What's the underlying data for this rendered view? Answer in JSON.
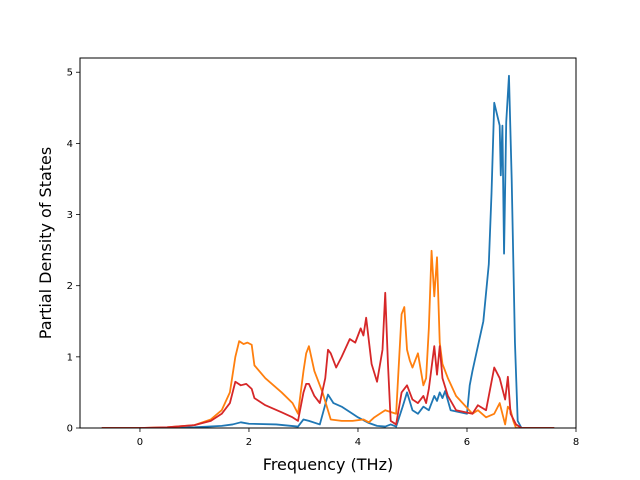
{
  "chart_data": {
    "type": "line",
    "title": "",
    "xlabel": "Frequency (THz)",
    "ylabel": "Partial Density of States",
    "xlim": [
      -1.1,
      8.0
    ],
    "ylim": [
      0,
      5.2
    ],
    "xticks": [
      0,
      2,
      4,
      6,
      8
    ],
    "yticks": [
      0,
      1,
      2,
      3,
      4,
      5
    ],
    "grid": false,
    "legend": "none",
    "series": [
      {
        "color": "#1f77b4",
        "x": [
          -0.7,
          0.5,
          1.0,
          1.5,
          1.7,
          1.85,
          2.0,
          2.5,
          2.9,
          3.0,
          3.1,
          3.3,
          3.45,
          3.55,
          3.7,
          3.9,
          4.0,
          4.2,
          4.35,
          4.5,
          4.6,
          4.7,
          4.82,
          4.9,
          5.0,
          5.1,
          5.2,
          5.3,
          5.4,
          5.45,
          5.5,
          5.55,
          5.6,
          5.7,
          6.0,
          6.05,
          6.1,
          6.3,
          6.4,
          6.45,
          6.5,
          6.6,
          6.62,
          6.65,
          6.68,
          6.72,
          6.77,
          6.82,
          6.88,
          6.93,
          7.0,
          7.6
        ],
        "y": [
          0,
          0,
          0.01,
          0.03,
          0.05,
          0.08,
          0.06,
          0.05,
          0.02,
          0.12,
          0.1,
          0.05,
          0.47,
          0.35,
          0.3,
          0.2,
          0.15,
          0.07,
          0.03,
          0.02,
          0.05,
          0.02,
          0.3,
          0.5,
          0.25,
          0.2,
          0.3,
          0.25,
          0.45,
          0.38,
          0.5,
          0.42,
          0.52,
          0.25,
          0.2,
          0.6,
          0.8,
          1.5,
          2.3,
          3.3,
          4.57,
          4.25,
          3.55,
          4.25,
          2.45,
          4.3,
          4.95,
          3.5,
          1.2,
          0.1,
          0,
          0
        ]
      },
      {
        "color": "#ff7f0e",
        "x": [
          -0.7,
          0.0,
          0.5,
          1.0,
          1.3,
          1.5,
          1.65,
          1.75,
          1.82,
          1.9,
          1.97,
          2.05,
          2.1,
          2.3,
          2.6,
          2.8,
          2.9,
          3.0,
          3.05,
          3.1,
          3.2,
          3.35,
          3.5,
          3.7,
          3.9,
          4.1,
          4.2,
          4.3,
          4.5,
          4.62,
          4.7,
          4.8,
          4.85,
          4.9,
          4.95,
          5.0,
          5.1,
          5.2,
          5.25,
          5.3,
          5.35,
          5.4,
          5.45,
          5.5,
          5.55,
          5.65,
          5.8,
          6.1,
          6.2,
          6.35,
          6.5,
          6.6,
          6.7,
          6.75,
          6.8,
          6.85,
          6.9,
          7.0,
          7.6
        ],
        "y": [
          0,
          0,
          0.01,
          0.04,
          0.12,
          0.25,
          0.5,
          1.0,
          1.22,
          1.18,
          1.2,
          1.17,
          0.88,
          0.7,
          0.5,
          0.35,
          0.2,
          0.8,
          1.05,
          1.15,
          0.8,
          0.5,
          0.12,
          0.1,
          0.1,
          0.12,
          0.08,
          0.15,
          0.25,
          0.22,
          0.2,
          1.6,
          1.7,
          1.1,
          0.95,
          0.85,
          1.05,
          0.6,
          0.7,
          1.4,
          2.49,
          1.85,
          2.4,
          1.2,
          0.9,
          0.7,
          0.45,
          0.2,
          0.25,
          0.15,
          0.2,
          0.35,
          0.05,
          0.3,
          0.25,
          0.1,
          0,
          0,
          0
        ]
      },
      {
        "color": "#d62728",
        "x": [
          -0.7,
          0.0,
          0.5,
          1.0,
          1.3,
          1.5,
          1.65,
          1.75,
          1.85,
          1.95,
          2.05,
          2.1,
          2.3,
          2.6,
          2.8,
          2.9,
          3.0,
          3.05,
          3.1,
          3.2,
          3.3,
          3.4,
          3.45,
          3.5,
          3.6,
          3.7,
          3.85,
          3.95,
          4.05,
          4.1,
          4.15,
          4.25,
          4.35,
          4.45,
          4.5,
          4.55,
          4.6,
          4.7,
          4.8,
          4.9,
          5.0,
          5.1,
          5.2,
          5.25,
          5.3,
          5.4,
          5.45,
          5.5,
          5.55,
          5.65,
          5.8,
          6.1,
          6.2,
          6.35,
          6.5,
          6.6,
          6.7,
          6.75,
          6.8,
          6.9,
          7.0,
          7.6
        ],
        "y": [
          0,
          0,
          0.01,
          0.04,
          0.1,
          0.2,
          0.35,
          0.65,
          0.6,
          0.62,
          0.55,
          0.42,
          0.32,
          0.22,
          0.15,
          0.1,
          0.5,
          0.62,
          0.62,
          0.45,
          0.35,
          0.7,
          1.1,
          1.05,
          0.85,
          1.0,
          1.25,
          1.2,
          1.4,
          1.3,
          1.55,
          0.9,
          0.65,
          1.1,
          1.9,
          0.9,
          0.1,
          0.05,
          0.5,
          0.6,
          0.4,
          0.35,
          0.45,
          0.35,
          0.55,
          1.15,
          0.75,
          1.15,
          0.7,
          0.45,
          0.25,
          0.2,
          0.32,
          0.25,
          0.85,
          0.7,
          0.4,
          0.72,
          0.2,
          0.05,
          0,
          0
        ]
      }
    ]
  }
}
